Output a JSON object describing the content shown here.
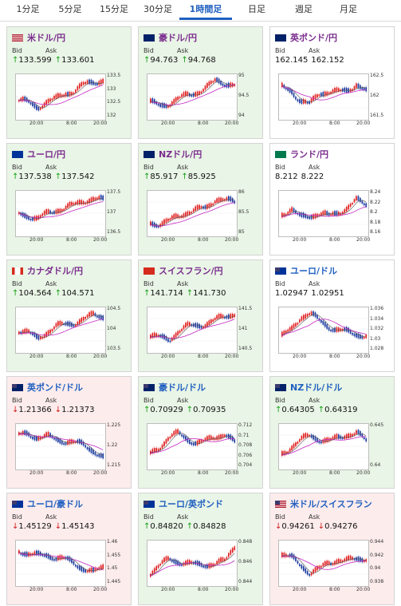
{
  "tabs": [
    {
      "label": "1分足",
      "active": false
    },
    {
      "label": "5分足",
      "active": false
    },
    {
      "label": "15分足",
      "active": false
    },
    {
      "label": "30分足",
      "active": false
    },
    {
      "label": "1時間足",
      "active": true
    },
    {
      "label": "日足",
      "active": false
    },
    {
      "label": "週足",
      "active": false
    },
    {
      "label": "月足",
      "active": false
    }
  ],
  "labels": {
    "bid": "Bid",
    "ask": "Ask"
  },
  "colors": {
    "up_bg": "#e9f5e6",
    "down_bg": "#fdecec",
    "candle_up": "#e02020",
    "candle_down": "#1c3aa0",
    "ma_short": "#555555",
    "ma_long": "#c428c4"
  },
  "cards": [
    {
      "name": "米ドル/円",
      "name_color": "purple",
      "flag": "us-flag",
      "bg": "up",
      "bid_dir": "up",
      "bid": "133.599",
      "ask_dir": "up",
      "ask": "133.601",
      "y_ticks": [
        "133.5",
        "133",
        "132.5",
        "132"
      ],
      "x_ticks": [
        "20:00",
        "8:00",
        "20:00"
      ],
      "trend": [
        0.38,
        0.3,
        0.18,
        0.32,
        0.4,
        0.55,
        0.62,
        0.78,
        0.85,
        0.9
      ]
    },
    {
      "name": "豪ドル/円",
      "name_color": "purple",
      "flag": "au-flag",
      "bg": "up",
      "bid_dir": "up",
      "bid": "94.763",
      "ask_dir": "up",
      "ask": "94.768",
      "y_ticks": [
        "95",
        "94.5",
        "94"
      ],
      "x_ticks": [
        "20:00",
        "8:00",
        "20:00"
      ],
      "trend": [
        0.3,
        0.22,
        0.28,
        0.4,
        0.5,
        0.58,
        0.7,
        0.88,
        0.82,
        0.78
      ]
    },
    {
      "name": "英ポンド/円",
      "name_color": "purple",
      "flag": "gb-flag",
      "bg": "plain",
      "bid_dir": "none",
      "bid": "162.145",
      "ask_dir": "none",
      "ask": "162.152",
      "y_ticks": [
        "162.5",
        "162",
        "161.5"
      ],
      "x_ticks": [
        "20:00",
        "8:00",
        "20:00"
      ],
      "trend": [
        0.7,
        0.62,
        0.35,
        0.25,
        0.55,
        0.6,
        0.58,
        0.62,
        0.8,
        0.6
      ]
    },
    {
      "name": "ユーロ/円",
      "name_color": "purple",
      "flag": "eu-flag",
      "bg": "up",
      "bid_dir": "up",
      "bid": "137.538",
      "ask_dir": "up",
      "ask": "137.542",
      "y_ticks": [
        "137.5",
        "137",
        "136.5"
      ],
      "x_ticks": [
        "20:00",
        "8:00",
        "20:00"
      ],
      "trend": [
        0.45,
        0.4,
        0.3,
        0.45,
        0.55,
        0.6,
        0.68,
        0.8,
        0.85,
        0.8
      ]
    },
    {
      "name": "NZドル/円",
      "name_color": "purple",
      "flag": "nz-flag",
      "bg": "up",
      "bid_dir": "up",
      "bid": "85.917",
      "ask_dir": "up",
      "ask": "85.925",
      "y_ticks": [
        "86",
        "85.5",
        "85"
      ],
      "x_ticks": [
        "20:00",
        "8:00",
        "20:00"
      ],
      "trend": [
        0.2,
        0.18,
        0.25,
        0.38,
        0.5,
        0.55,
        0.6,
        0.85,
        0.8,
        0.75
      ]
    },
    {
      "name": "ランド/円",
      "name_color": "purple",
      "flag": "za-flag",
      "bg": "plain",
      "bid_dir": "none",
      "bid": "8.212",
      "ask_dir": "none",
      "ask": "8.222",
      "y_ticks": [
        "8.24",
        "8.22",
        "8.2",
        "8.18",
        "8.16"
      ],
      "x_ticks": [
        "20:00",
        "8:00",
        "20:00"
      ],
      "trend": [
        0.45,
        0.55,
        0.35,
        0.4,
        0.45,
        0.38,
        0.48,
        0.6,
        0.8,
        0.7
      ]
    },
    {
      "name": "カナダドル/円",
      "name_color": "purple",
      "flag": "ca-flag",
      "bg": "up",
      "bid_dir": "up",
      "bid": "104.564",
      "ask_dir": "up",
      "ask": "104.571",
      "y_ticks": [
        "104.5",
        "104",
        "103.5"
      ],
      "x_ticks": [
        "20:00",
        "8:00",
        "20:00"
      ],
      "trend": [
        0.45,
        0.38,
        0.22,
        0.4,
        0.55,
        0.6,
        0.65,
        0.75,
        0.85,
        0.82
      ]
    },
    {
      "name": "スイスフラン/円",
      "name_color": "purple",
      "flag": "ch-flag",
      "bg": "up",
      "bid_dir": "up",
      "bid": "141.714",
      "ask_dir": "up",
      "ask": "141.730",
      "y_ticks": [
        "141.5",
        "141",
        "140.5"
      ],
      "x_ticks": [
        "20:00",
        "8:00",
        "20:00"
      ],
      "trend": [
        0.3,
        0.25,
        0.2,
        0.42,
        0.55,
        0.58,
        0.62,
        0.72,
        0.82,
        0.9
      ]
    },
    {
      "name": "ユーロ/ドル",
      "name_color": "blue",
      "flag": "eu-us-flag",
      "bg": "plain",
      "bid_dir": "none",
      "bid": "1.02947",
      "ask_dir": "none",
      "ask": "1.02951",
      "y_ticks": [
        "1.036",
        "1.034",
        "1.032",
        "1.03",
        "1.028"
      ],
      "x_ticks": [
        "20:00",
        "8:00",
        "20:00"
      ],
      "trend": [
        0.3,
        0.45,
        0.8,
        0.9,
        0.7,
        0.55,
        0.45,
        0.4,
        0.35,
        0.3
      ]
    },
    {
      "name": "英ポンド/ドル",
      "name_color": "blue",
      "flag": "gb-us-flag",
      "bg": "down",
      "bid_dir": "down",
      "bid": "1.21366",
      "ask_dir": "down",
      "ask": "1.21373",
      "y_ticks": [
        "1.225",
        "1.22",
        "1.215"
      ],
      "x_ticks": [
        "20:00",
        "8:00",
        "20:00"
      ],
      "trend": [
        0.75,
        0.8,
        0.7,
        0.72,
        0.65,
        0.6,
        0.55,
        0.5,
        0.35,
        0.15
      ]
    },
    {
      "name": "豪ドル/ドル",
      "name_color": "blue",
      "flag": "au-us-flag",
      "bg": "up",
      "bid_dir": "up",
      "bid": "0.70929",
      "ask_dir": "up",
      "ask": "0.70935",
      "y_ticks": [
        "0.712",
        "0.71",
        "0.708",
        "0.706",
        "0.704"
      ],
      "x_ticks": [
        "20:00",
        "8:00",
        "20:00"
      ],
      "trend": [
        0.25,
        0.45,
        0.7,
        0.8,
        0.65,
        0.55,
        0.6,
        0.72,
        0.8,
        0.55
      ]
    },
    {
      "name": "NZドル/ドル",
      "name_color": "blue",
      "flag": "nz-us-flag",
      "bg": "up",
      "bid_dir": "up",
      "bid": "0.64305",
      "ask_dir": "up",
      "ask": "0.64319",
      "y_ticks": [
        "0.645",
        "0.64"
      ],
      "x_ticks": [
        "20:00",
        "8:00",
        "20:00"
      ],
      "trend": [
        0.25,
        0.45,
        0.62,
        0.75,
        0.65,
        0.6,
        0.68,
        0.78,
        0.82,
        0.6
      ]
    },
    {
      "name": "ユーロ/豪ドル",
      "name_color": "blue",
      "flag": "eu-au-flag",
      "bg": "down",
      "bid_dir": "down",
      "bid": "1.45129",
      "ask_dir": "down",
      "ask": "1.45143",
      "y_ticks": [
        "1.46",
        "1.455",
        "1.45",
        "1.445"
      ],
      "x_ticks": [
        "20:00",
        "8:00",
        "20:00"
      ],
      "trend": [
        0.8,
        0.7,
        0.65,
        0.68,
        0.6,
        0.55,
        0.45,
        0.3,
        0.2,
        0.35
      ]
    },
    {
      "name": "ユーロ/英ポンド",
      "name_color": "blue",
      "flag": "eu-gb-flag",
      "bg": "up",
      "bid_dir": "up",
      "bid": "0.84820",
      "ask_dir": "up",
      "ask": "0.84828",
      "y_ticks": [
        "0.848",
        "0.846",
        "0.844"
      ],
      "x_ticks": [
        "20:00",
        "8:00",
        "20:00"
      ],
      "trend": [
        0.2,
        0.4,
        0.55,
        0.5,
        0.45,
        0.4,
        0.42,
        0.45,
        0.5,
        0.9
      ]
    },
    {
      "name": "米ドル/スイスフラン",
      "name_color": "blue",
      "flag": "us-ch-flag",
      "bg": "down",
      "bid_dir": "down",
      "bid": "0.94261",
      "ask_dir": "down",
      "ask": "0.94276",
      "y_ticks": [
        "0.944",
        "0.942",
        "0.94",
        "0.938"
      ],
      "x_ticks": [
        "20:00",
        "8:00",
        "20:00"
      ],
      "trend": [
        0.7,
        0.6,
        0.4,
        0.2,
        0.3,
        0.45,
        0.55,
        0.52,
        0.55,
        0.6
      ]
    }
  ]
}
